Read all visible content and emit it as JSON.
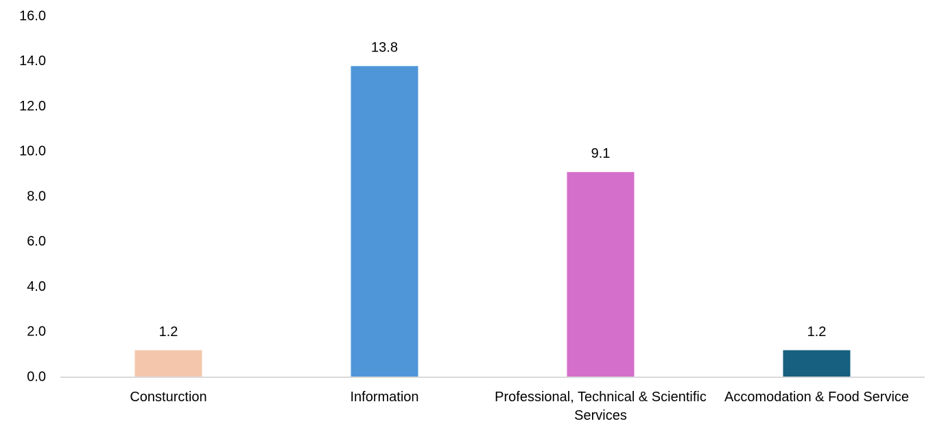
{
  "chart_data": {
    "type": "bar",
    "categories": [
      "Consturction",
      "Information",
      "Professional, Technical & Scientific Services",
      "Accomodation & Food Service"
    ],
    "values": [
      1.2,
      13.8,
      9.1,
      1.2
    ],
    "colors": [
      "#f4c7ad",
      "#4f96d9",
      "#d46fcb",
      "#17607f"
    ],
    "ylim": [
      0,
      16
    ],
    "yticks": [
      {
        "value": 0,
        "label": "0.0"
      },
      {
        "value": 2,
        "label": "2.0"
      },
      {
        "value": 4,
        "label": "4.0"
      },
      {
        "value": 6,
        "label": "6.0"
      },
      {
        "value": 8,
        "label": "8.0"
      },
      {
        "value": 10,
        "label": "10.0"
      },
      {
        "value": 12,
        "label": "12.0"
      },
      {
        "value": 14,
        "label": "14.0"
      },
      {
        "value": 16,
        "label": "16.0"
      }
    ],
    "grid": false
  }
}
